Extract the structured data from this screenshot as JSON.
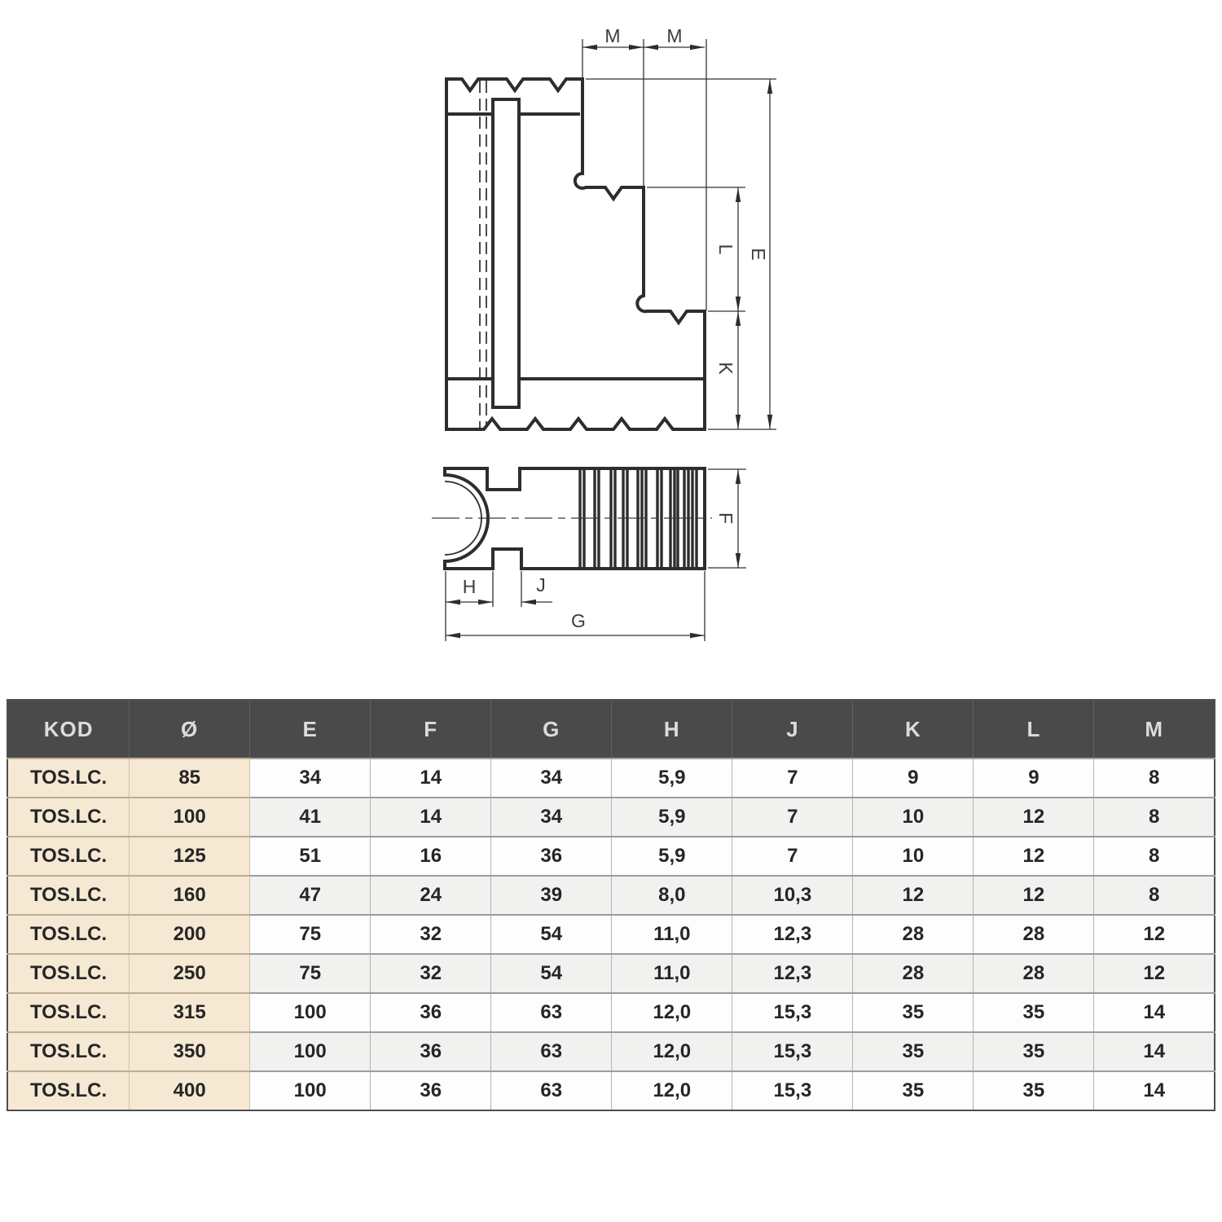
{
  "drawing": {
    "labels": {
      "m_left": "M",
      "m_right": "M",
      "e": "E",
      "l": "L",
      "k": "K",
      "f": "F",
      "h": "H",
      "j": "J",
      "g": "G"
    },
    "line_color": "#2d2d2d",
    "label_color": "#3c3c3c"
  },
  "table": {
    "headers": [
      "KOD",
      "Ø",
      "E",
      "F",
      "G",
      "H",
      "J",
      "K",
      "L",
      "M"
    ],
    "rows": [
      [
        "TOS.LC.",
        "85",
        "34",
        "14",
        "34",
        "5,9",
        "7",
        "9",
        "9",
        "8"
      ],
      [
        "TOS.LC.",
        "100",
        "41",
        "14",
        "34",
        "5,9",
        "7",
        "10",
        "12",
        "8"
      ],
      [
        "TOS.LC.",
        "125",
        "51",
        "16",
        "36",
        "5,9",
        "7",
        "10",
        "12",
        "8"
      ],
      [
        "TOS.LC.",
        "160",
        "47",
        "24",
        "39",
        "8,0",
        "10,3",
        "12",
        "12",
        "8"
      ],
      [
        "TOS.LC.",
        "200",
        "75",
        "32",
        "54",
        "11,0",
        "12,3",
        "28",
        "28",
        "12"
      ],
      [
        "TOS.LC.",
        "250",
        "75",
        "32",
        "54",
        "11,0",
        "12,3",
        "28",
        "28",
        "12"
      ],
      [
        "TOS.LC.",
        "315",
        "100",
        "36",
        "63",
        "12,0",
        "15,3",
        "35",
        "35",
        "14"
      ],
      [
        "TOS.LC.",
        "350",
        "100",
        "36",
        "63",
        "12,0",
        "15,3",
        "35",
        "35",
        "14"
      ],
      [
        "TOS.LC.",
        "400",
        "100",
        "36",
        "63",
        "12,0",
        "15,3",
        "35",
        "35",
        "14"
      ]
    ],
    "colors": {
      "header_bg": "#4a4a4a",
      "header_text": "#dcdcdc",
      "code_col_bg": "#f6e9d3",
      "row_alt_bg": "#f1f1ef"
    }
  }
}
